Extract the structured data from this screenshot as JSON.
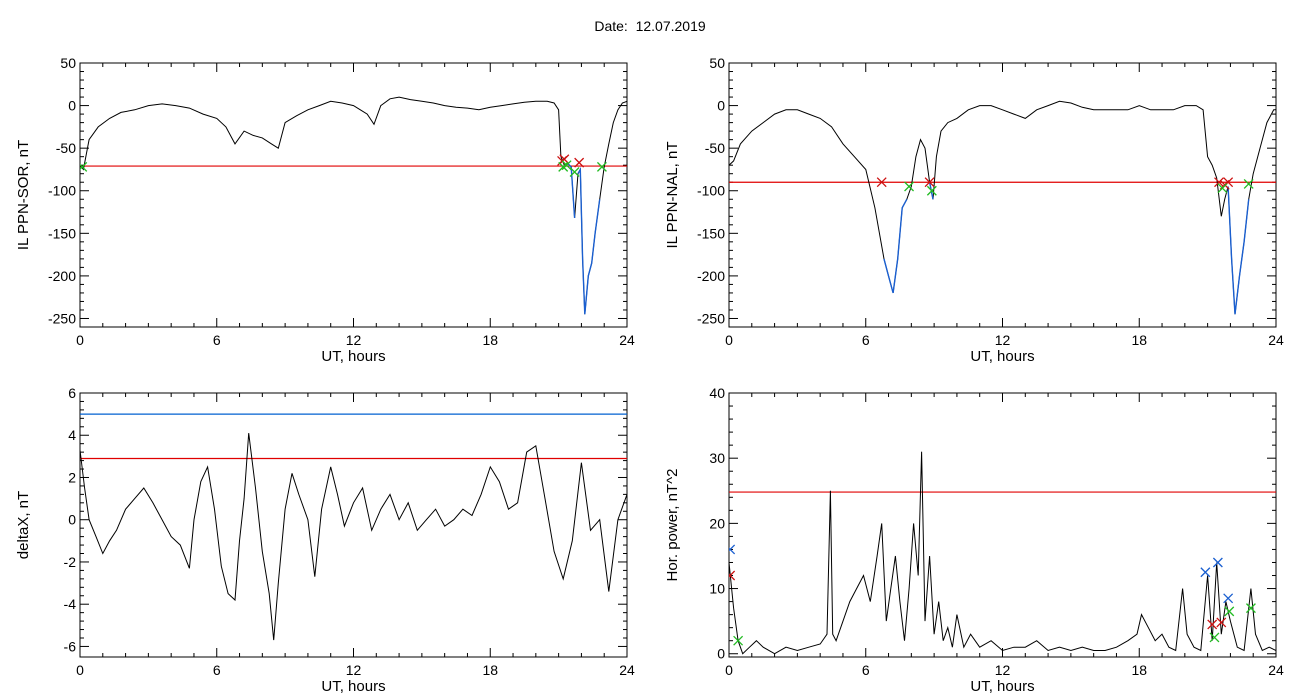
{
  "header": {
    "date_label": "Date:",
    "date_value": "12.07.2019"
  },
  "colors": {
    "data": "#000000",
    "threshold_red": "#e00000",
    "threshold_blue": "#0060d0",
    "event_blue": "#1a5fd0",
    "marker_red": "#cc1010",
    "marker_green": "#22bb22",
    "marker_blue": "#1a5fd0"
  },
  "chart_data": [
    {
      "id": "sor",
      "type": "line",
      "title": "",
      "xlabel": "UT, hours",
      "ylabel": "IL PPN-SOR, nT",
      "xlim": [
        0,
        24
      ],
      "ylim": [
        -260,
        50
      ],
      "xticks": [
        0,
        6,
        12,
        18,
        24
      ],
      "yticks": [
        50,
        0,
        -50,
        -100,
        -150,
        -200,
        -250
      ],
      "thresholds": [
        {
          "value": -71,
          "color": "red"
        }
      ],
      "series": [
        {
          "x": [
            0,
            0.15,
            0.4,
            0.8,
            1.3,
            1.8,
            2.4,
            3,
            3.6,
            4.2,
            4.8,
            5.4,
            6,
            6.4,
            6.8,
            7.2,
            7.6,
            8,
            8.4,
            8.7,
            9,
            9.5,
            10,
            10.5,
            11,
            11.5,
            12,
            12.3,
            12.6,
            12.9,
            13.2,
            13.6,
            14,
            14.5,
            15,
            15.5,
            16,
            16.5,
            17,
            17.5,
            18,
            18.5,
            19,
            19.5,
            20,
            20.5,
            20.8,
            21,
            21.1,
            21.25,
            21.4,
            21.55,
            21.7,
            21.85,
            21.95,
            22.05,
            22.15,
            22.3,
            22.45,
            22.6,
            22.8,
            23,
            23.2,
            23.4,
            23.6,
            23.8,
            24
          ],
          "y": [
            -70,
            -75,
            -40,
            -25,
            -15,
            -8,
            -5,
            0,
            2,
            0,
            -3,
            -10,
            -15,
            -25,
            -45,
            -30,
            -35,
            -38,
            -45,
            -50,
            -20,
            -12,
            -5,
            0,
            5,
            3,
            0,
            -5,
            -10,
            -22,
            0,
            8,
            10,
            7,
            5,
            3,
            0,
            -2,
            -3,
            -5,
            -2,
            0,
            2,
            4,
            5,
            5,
            3,
            -5,
            -60,
            -70,
            -68,
            -72,
            -132,
            -80,
            -75,
            -180,
            -245,
            -200,
            -185,
            -150,
            -110,
            -72,
            -45,
            -20,
            -5,
            3,
            5
          ],
          "event_segments": [
            [
              21.35,
              21.75
            ],
            [
              21.85,
              22.9
            ]
          ],
          "markers": [
            {
              "x": 21.15,
              "y": -65,
              "color": "red"
            },
            {
              "x": 21.25,
              "y": -63,
              "color": "red"
            },
            {
              "x": 21.9,
              "y": -67,
              "color": "red"
            },
            {
              "x": 0.1,
              "y": -72,
              "color": "green"
            },
            {
              "x": 21.2,
              "y": -72,
              "color": "green"
            },
            {
              "x": 21.35,
              "y": -70,
              "color": "green"
            },
            {
              "x": 21.7,
              "y": -78,
              "color": "green"
            },
            {
              "x": 22.9,
              "y": -72,
              "color": "green"
            }
          ]
        }
      ]
    },
    {
      "id": "nal",
      "type": "line",
      "title": "",
      "xlabel": "UT, hours",
      "ylabel": "IL PPN-NAL, nT",
      "xlim": [
        0,
        24
      ],
      "ylim": [
        -260,
        50
      ],
      "xticks": [
        0,
        6,
        12,
        18,
        24
      ],
      "yticks": [
        50,
        0,
        -50,
        -100,
        -150,
        -200,
        -250
      ],
      "thresholds": [
        {
          "value": -90,
          "color": "red"
        }
      ],
      "series": [
        {
          "x": [
            0,
            0.2,
            0.5,
            1,
            1.5,
            2,
            2.5,
            3,
            3.5,
            4,
            4.5,
            5,
            5.5,
            6,
            6.4,
            6.8,
            7,
            7.2,
            7.4,
            7.6,
            7.8,
            8,
            8.2,
            8.4,
            8.6,
            8.8,
            8.95,
            9.1,
            9.3,
            9.6,
            10,
            10.5,
            11,
            11.5,
            12,
            12.5,
            13,
            13.5,
            14,
            14.5,
            15,
            15.5,
            16,
            16.5,
            17,
            17.5,
            18,
            18.5,
            19,
            19.5,
            20,
            20.5,
            20.8,
            21,
            21.2,
            21.4,
            21.6,
            21.75,
            21.9,
            22.05,
            22.2,
            22.4,
            22.6,
            22.8,
            23,
            23.3,
            23.6,
            23.9,
            24
          ],
          "y": [
            -70,
            -65,
            -45,
            -30,
            -20,
            -10,
            -5,
            -5,
            -10,
            -15,
            -25,
            -45,
            -60,
            -75,
            -120,
            -180,
            -200,
            -220,
            -180,
            -120,
            -110,
            -95,
            -60,
            -40,
            -50,
            -90,
            -110,
            -60,
            -30,
            -20,
            -15,
            -5,
            0,
            0,
            -5,
            -10,
            -15,
            -5,
            0,
            5,
            3,
            -2,
            -5,
            -5,
            -5,
            -5,
            0,
            -5,
            -5,
            -5,
            0,
            0,
            -5,
            -60,
            -70,
            -85,
            -130,
            -110,
            -95,
            -180,
            -245,
            -200,
            -160,
            -110,
            -80,
            -50,
            -20,
            -5,
            -5
          ],
          "event_segments": [
            [
              6.7,
              7.9
            ],
            [
              8.8,
              8.95
            ],
            [
              21.45,
              21.65
            ],
            [
              21.85,
              22.8
            ]
          ],
          "markers": [
            {
              "x": 6.7,
              "y": -90,
              "color": "red"
            },
            {
              "x": 8.8,
              "y": -90,
              "color": "red"
            },
            {
              "x": 21.5,
              "y": -90,
              "color": "red"
            },
            {
              "x": 21.75,
              "y": -93,
              "color": "red"
            },
            {
              "x": 21.9,
              "y": -90,
              "color": "red"
            },
            {
              "x": 7.9,
              "y": -95,
              "color": "green"
            },
            {
              "x": 8.9,
              "y": -100,
              "color": "green"
            },
            {
              "x": 21.65,
              "y": -97,
              "color": "green"
            },
            {
              "x": 22.8,
              "y": -92,
              "color": "green"
            }
          ]
        }
      ]
    },
    {
      "id": "deltax",
      "type": "line",
      "title": "",
      "xlabel": "UT, hours",
      "ylabel": "deltaX, nT",
      "xlim": [
        0,
        24
      ],
      "ylim": [
        -6.5,
        6
      ],
      "xticks": [
        0,
        6,
        12,
        18,
        24
      ],
      "yticks": [
        6,
        4,
        2,
        0,
        -2,
        -4,
        -6
      ],
      "thresholds": [
        {
          "value": 5,
          "color": "blue"
        },
        {
          "value": 2.9,
          "color": "red"
        }
      ],
      "series": [
        {
          "x": [
            0,
            0.2,
            0.4,
            0.7,
            1,
            1.3,
            1.6,
            2,
            2.4,
            2.8,
            3.2,
            3.6,
            4,
            4.4,
            4.8,
            5,
            5.3,
            5.6,
            5.9,
            6.2,
            6.5,
            6.8,
            7,
            7.2,
            7.4,
            7.7,
            8,
            8.3,
            8.5,
            8.7,
            9,
            9.3,
            9.6,
            10,
            10.3,
            10.6,
            11,
            11.3,
            11.6,
            12,
            12.4,
            12.8,
            13.2,
            13.6,
            14,
            14.4,
            14.8,
            15.2,
            15.6,
            16,
            16.4,
            16.8,
            17.2,
            17.6,
            18,
            18.4,
            18.8,
            19.2,
            19.6,
            20,
            20.4,
            20.8,
            21.2,
            21.6,
            22,
            22.4,
            22.8,
            23.2,
            23.6,
            24
          ],
          "y": [
            3.3,
            1.5,
            0,
            -0.8,
            -1.6,
            -1,
            -0.5,
            0.5,
            1,
            1.5,
            0.8,
            0,
            -0.8,
            -1.2,
            -2.3,
            0,
            1.8,
            2.5,
            0.5,
            -2.2,
            -3.5,
            -3.8,
            -1,
            1,
            4.1,
            1.5,
            -1.5,
            -3.5,
            -5.7,
            -3,
            0.5,
            2.2,
            1.2,
            0,
            -2.7,
            0.5,
            2.5,
            1.2,
            -0.3,
            0.8,
            1.5,
            -0.5,
            0.5,
            1.2,
            0,
            0.8,
            -0.5,
            0,
            0.5,
            -0.3,
            0,
            0.5,
            0.2,
            1.2,
            2.5,
            1.8,
            0.5,
            0.8,
            3.2,
            3.5,
            1,
            -1.5,
            -2.8,
            -1,
            2.7,
            -0.5,
            0,
            -3.4,
            0,
            1.2
          ]
        }
      ]
    },
    {
      "id": "hpower",
      "type": "line",
      "title": "",
      "xlabel": "UT, hours",
      "ylabel": "Hor. power, nT^2",
      "xlim": [
        0,
        24
      ],
      "ylim": [
        -0.5,
        40
      ],
      "xticks": [
        0,
        6,
        12,
        18,
        24
      ],
      "yticks": [
        40,
        30,
        20,
        10,
        0
      ],
      "thresholds": [
        {
          "value": 24.8,
          "color": "red"
        }
      ],
      "series": [
        {
          "x": [
            0,
            0.2,
            0.4,
            0.6,
            0.9,
            1.2,
            1.5,
            2,
            2.5,
            3,
            3.5,
            4,
            4.3,
            4.45,
            4.55,
            4.7,
            5,
            5.3,
            5.6,
            5.9,
            6.2,
            6.5,
            6.7,
            6.9,
            7.1,
            7.3,
            7.5,
            7.7,
            7.9,
            8.1,
            8.3,
            8.45,
            8.6,
            8.8,
            9,
            9.2,
            9.4,
            9.6,
            9.8,
            10,
            10.3,
            10.6,
            11,
            11.5,
            12,
            12.5,
            13,
            13.5,
            14,
            14.5,
            15,
            15.5,
            16,
            16.5,
            17,
            17.5,
            17.9,
            18.1,
            18.4,
            18.7,
            19,
            19.3,
            19.6,
            19.9,
            20.1,
            20.4,
            20.7,
            21,
            21.2,
            21.4,
            21.6,
            21.8,
            22,
            22.3,
            22.6,
            22.9,
            23.1,
            23.4,
            23.7,
            24
          ],
          "y": [
            14,
            7,
            2,
            0,
            1,
            2,
            1,
            0,
            1,
            0.5,
            1,
            1.5,
            3,
            25,
            3,
            2,
            5,
            8,
            10,
            12,
            8,
            15,
            20,
            5,
            10,
            15,
            8,
            2,
            10,
            20,
            12,
            31,
            5,
            15,
            3,
            8,
            2,
            4,
            1,
            6,
            1,
            3,
            1,
            2,
            0.5,
            1,
            1,
            2,
            0.5,
            1,
            0.5,
            1,
            0.5,
            0.5,
            1,
            2,
            3,
            6,
            4,
            2,
            3,
            1,
            0.5,
            10,
            3,
            1,
            0.5,
            12,
            2,
            14,
            3,
            8,
            5,
            1,
            0.5,
            10,
            3,
            0.5,
            1,
            0.5
          ],
          "markers": [
            {
              "x": 0.05,
              "y": 16,
              "color": "blue"
            },
            {
              "x": 20.9,
              "y": 12.5,
              "color": "blue"
            },
            {
              "x": 21.45,
              "y": 14,
              "color": "blue"
            },
            {
              "x": 21.9,
              "y": 8.5,
              "color": "blue"
            },
            {
              "x": 0.05,
              "y": 12,
              "color": "red"
            },
            {
              "x": 21.2,
              "y": 4.5,
              "color": "red"
            },
            {
              "x": 21.6,
              "y": 4.8,
              "color": "red"
            },
            {
              "x": 0.4,
              "y": 2,
              "color": "green"
            },
            {
              "x": 21.3,
              "y": 2.5,
              "color": "green"
            },
            {
              "x": 21.95,
              "y": 6.5,
              "color": "green"
            },
            {
              "x": 22.9,
              "y": 7,
              "color": "green"
            }
          ]
        }
      ]
    }
  ]
}
